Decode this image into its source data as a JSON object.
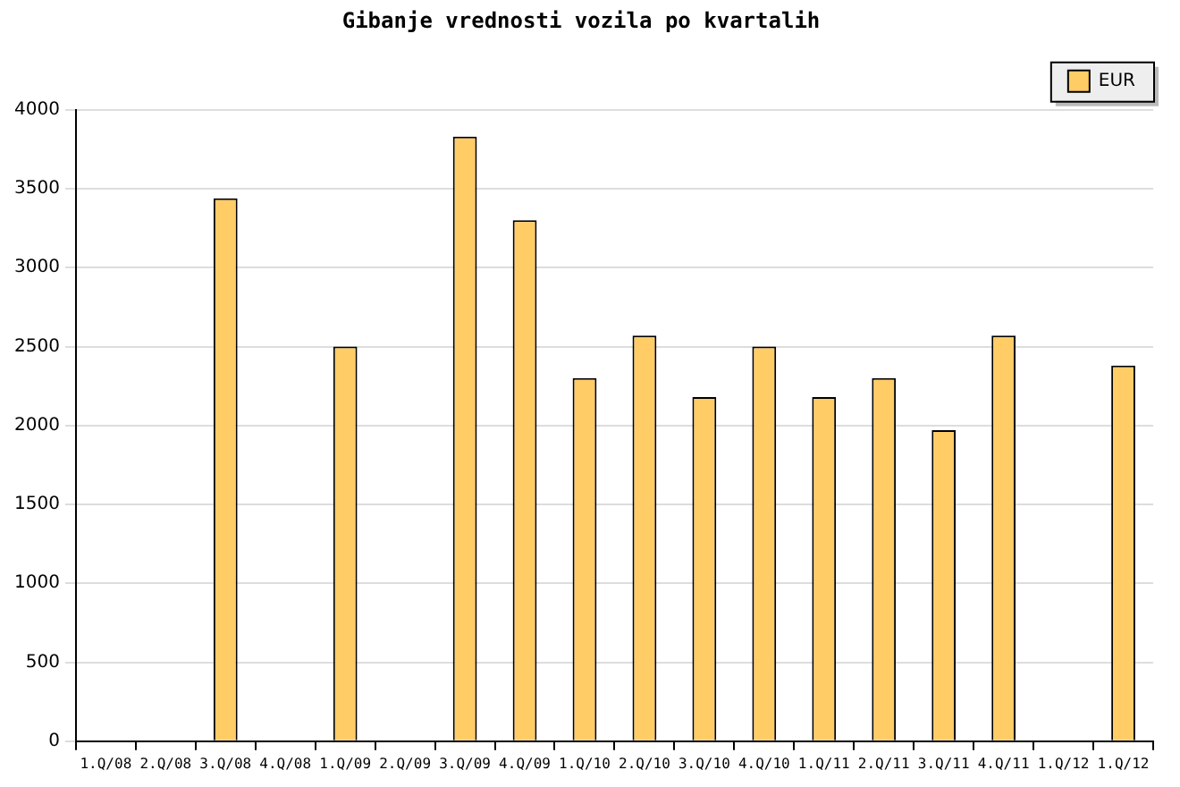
{
  "chart_data": {
    "type": "bar",
    "title": "Gibanje vrednosti vozila po kvartalih",
    "categories": [
      "1.Q/08",
      "2.Q/08",
      "3.Q/08",
      "4.Q/08",
      "1.Q/09",
      "2.Q/09",
      "3.Q/09",
      "4.Q/09",
      "1.Q/10",
      "2.Q/10",
      "3.Q/10",
      "4.Q/10",
      "1.Q/11",
      "2.Q/11",
      "3.Q/11",
      "4.Q/11",
      "1.Q/12",
      "1.Q/12"
    ],
    "series": [
      {
        "name": "EUR",
        "color": "#ffcc66",
        "values": [
          null,
          null,
          3440,
          null,
          2500,
          null,
          3830,
          3300,
          2300,
          2570,
          2180,
          2500,
          2180,
          2300,
          1970,
          2570,
          null,
          2380
        ]
      }
    ],
    "ylim": [
      0,
      4000
    ],
    "yticks": [
      0,
      500,
      1000,
      1500,
      2000,
      2500,
      3000,
      3500,
      4000
    ],
    "grid": "y",
    "legend": "top right"
  }
}
